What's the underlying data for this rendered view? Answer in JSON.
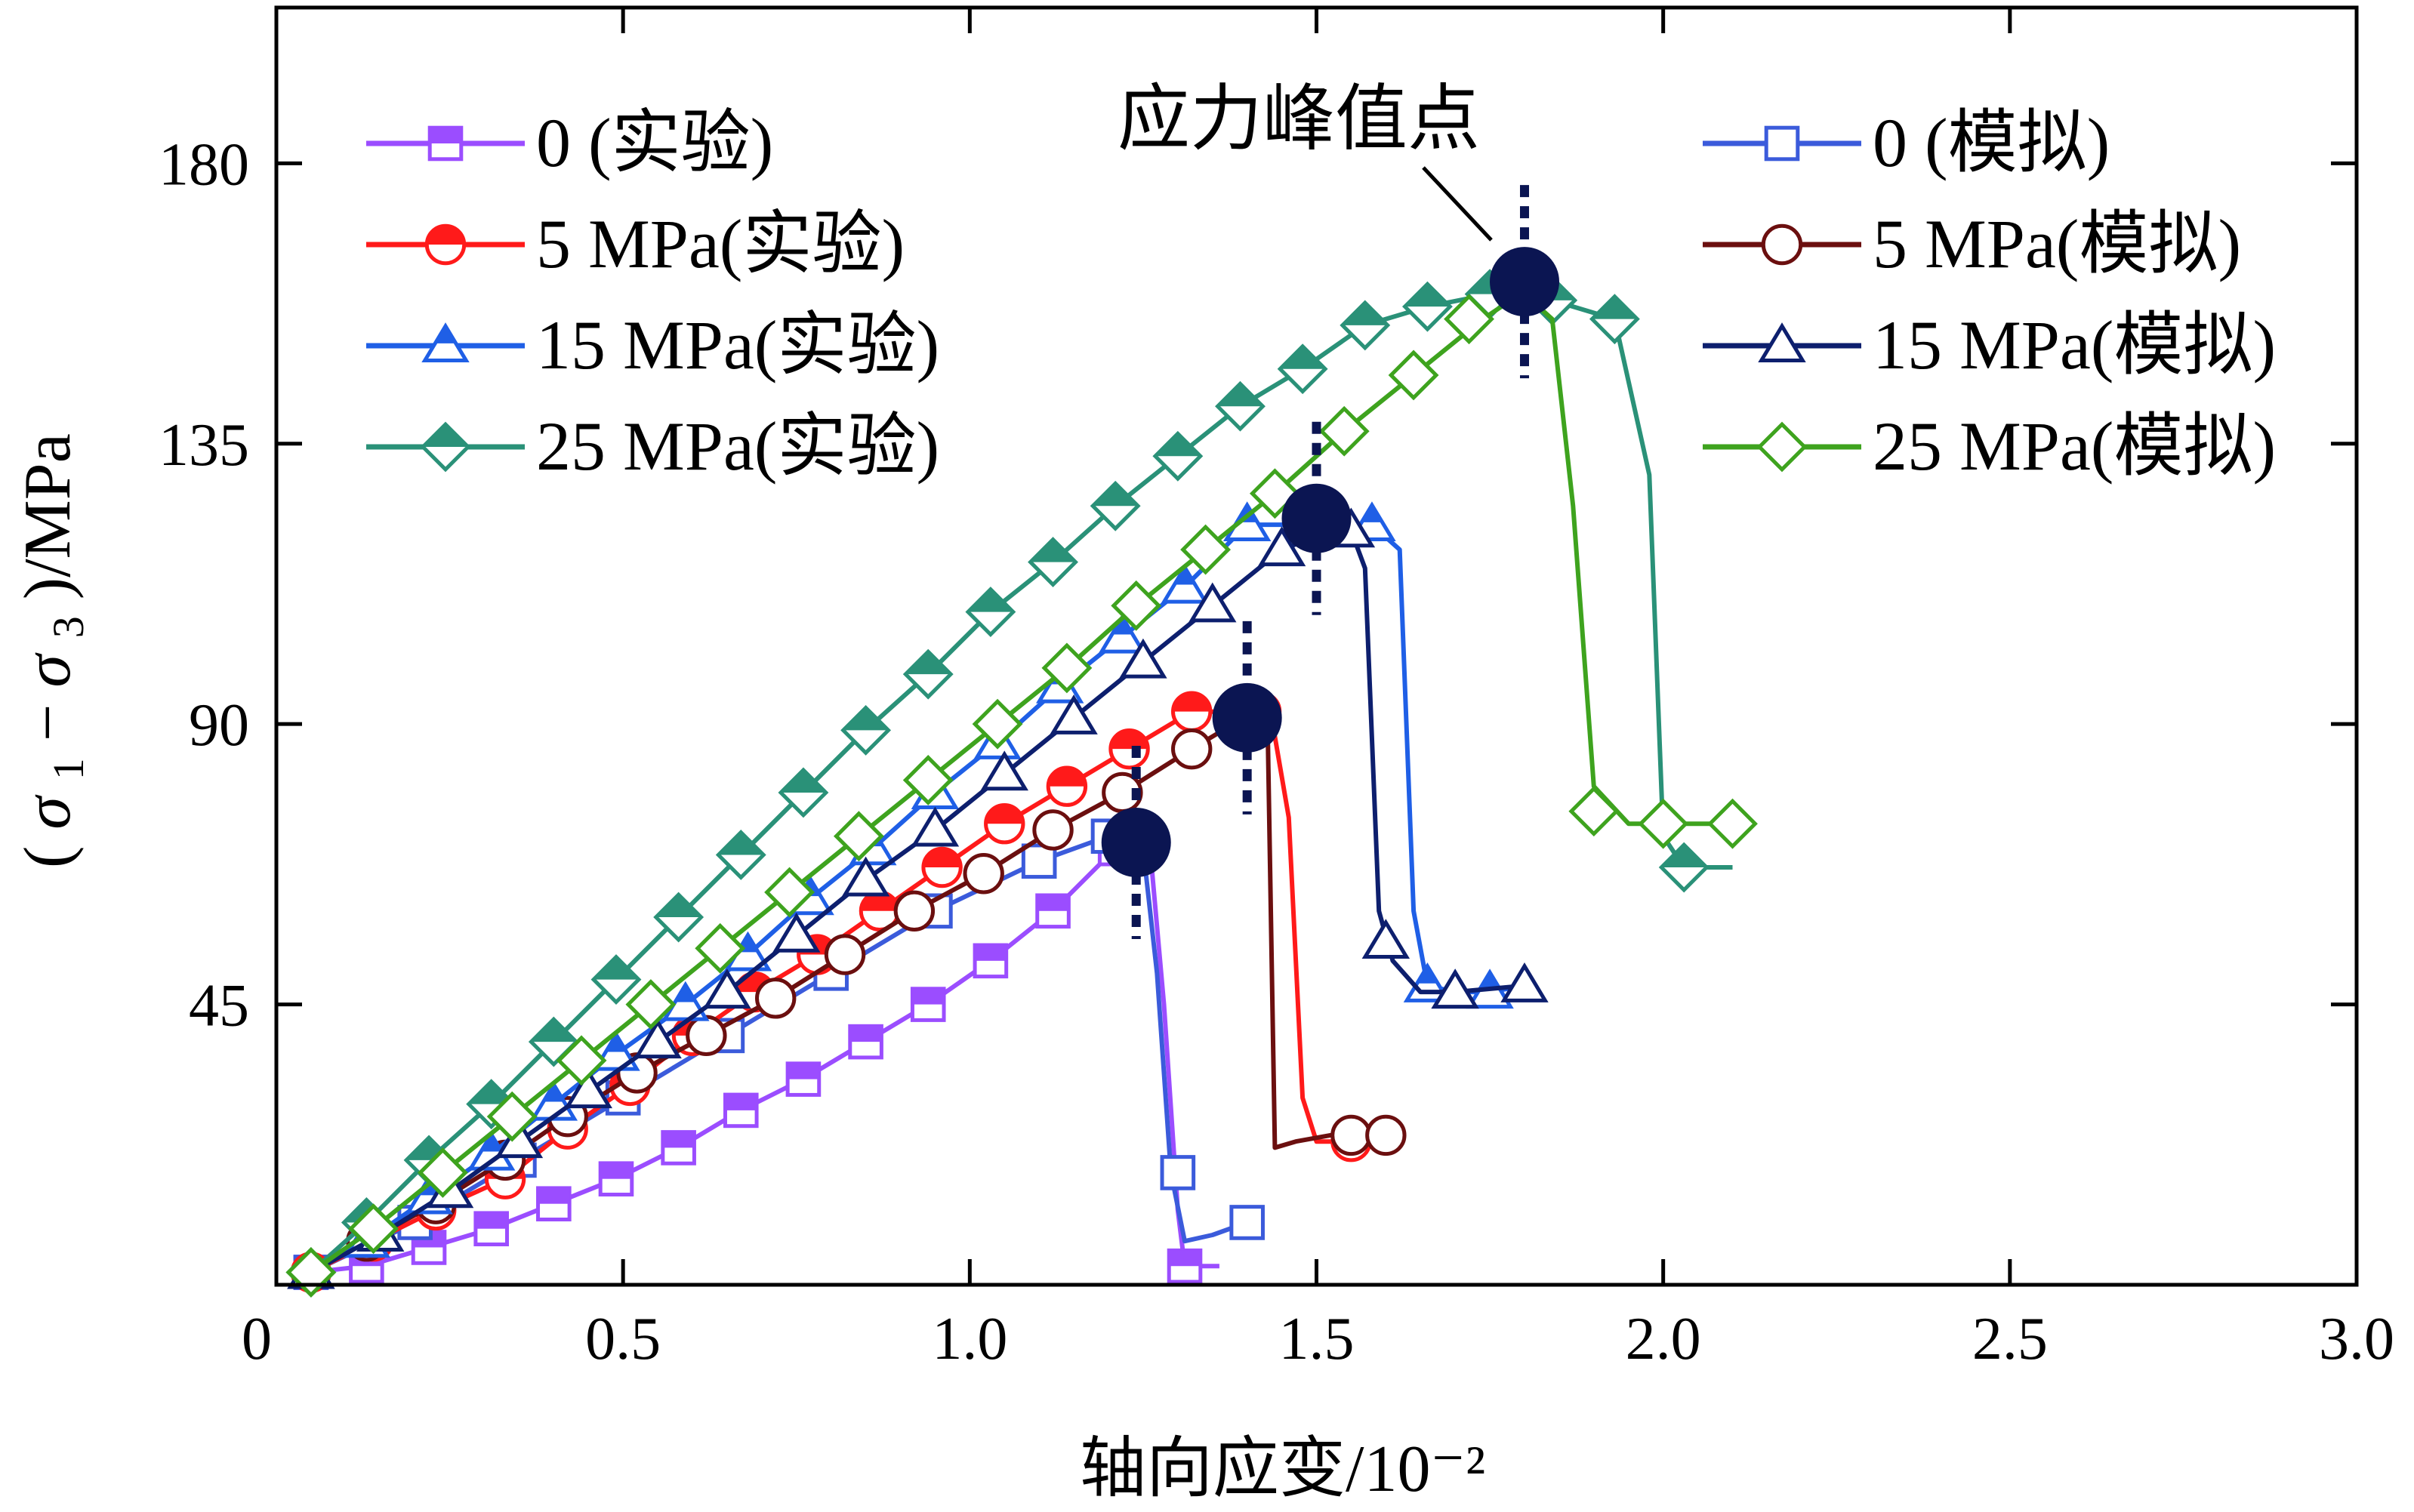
{
  "chart_data": {
    "type": "line",
    "xlabel": "轴向应变/10⁻²",
    "ylabel_parts": {
      "open": "(",
      "sigma1": "σ",
      "sub1": "1",
      "minus": "−",
      "sigma3": "σ",
      "sub3": "3",
      "close": ")/MPa"
    },
    "xlim": [
      0,
      3.0
    ],
    "ylim": [
      0,
      205
    ],
    "xticks": [
      0,
      0.5,
      1.0,
      1.5,
      2.0,
      2.5,
      3.0
    ],
    "xtick_labels": [
      "0",
      "0.5",
      "1.0",
      "1.5",
      "2.0",
      "2.5",
      "3.0"
    ],
    "yticks": [
      45,
      90,
      135,
      180
    ],
    "ytick_labels": [
      "45",
      "90",
      "135",
      "180"
    ],
    "annotation": {
      "text": "应力峰值点",
      "x": 1.8,
      "y": 160
    },
    "legend_left": [
      {
        "label": "0 (实验)",
        "color": "#9b4dff",
        "marker": "square",
        "filled": true
      },
      {
        "label": "5 MPa(实验)",
        "color": "#ff1a1a",
        "marker": "circle",
        "filled": true
      },
      {
        "label": "15 MPa(实验)",
        "color": "#1f5fe6",
        "marker": "triangle",
        "filled": true
      },
      {
        "label": "25 MPa(实验)",
        "color": "#2a9178",
        "marker": "diamond",
        "filled": true
      }
    ],
    "legend_right": [
      {
        "label": "0 (模拟)",
        "color": "#3b5bdb",
        "marker": "square",
        "filled": false
      },
      {
        "label": "5 MPa(模拟)",
        "color": "#6b0f0f",
        "marker": "circle",
        "filled": false
      },
      {
        "label": "15 MPa(模拟)",
        "color": "#0d1f6e",
        "marker": "triangle",
        "filled": false
      },
      {
        "label": "25 MPa(模拟)",
        "color": "#3ea31e",
        "marker": "diamond",
        "filled": false
      }
    ],
    "series": [
      {
        "name": "0 (实验)",
        "color": "#9b4dff",
        "marker": "square",
        "filled": true,
        "x": [
          0.05,
          0.13,
          0.22,
          0.31,
          0.4,
          0.49,
          0.58,
          0.67,
          0.76,
          0.85,
          0.94,
          1.03,
          1.12,
          1.21,
          1.26,
          1.28,
          1.3,
          1.31,
          1.33,
          1.36
        ],
        "y": [
          2,
          3,
          6,
          9,
          13,
          17,
          22,
          28,
          33,
          39,
          45,
          52,
          60,
          70,
          70,
          45,
          12,
          3,
          3,
          3
        ],
        "mx": [
          0.05,
          0.13,
          0.22,
          0.31,
          0.4,
          0.49,
          0.58,
          0.67,
          0.76,
          0.85,
          0.94,
          1.03,
          1.12,
          1.21,
          1.31
        ],
        "my": [
          2,
          3,
          6,
          9,
          13,
          17,
          22,
          28,
          33,
          39,
          45,
          52,
          60,
          70,
          3
        ]
      },
      {
        "name": "0 (模拟)",
        "color": "#3b5bdb",
        "marker": "square",
        "filled": false,
        "x": [
          0.05,
          0.2,
          0.35,
          0.5,
          0.65,
          0.8,
          0.95,
          1.1,
          1.2,
          1.25,
          1.27,
          1.29,
          1.31,
          1.35,
          1.4
        ],
        "y": [
          2,
          10,
          20,
          30,
          40,
          50,
          60,
          68,
          72,
          70,
          50,
          18,
          7,
          8,
          10
        ],
        "mx": [
          0.05,
          0.2,
          0.35,
          0.5,
          0.65,
          0.8,
          0.95,
          1.1,
          1.2,
          1.3,
          1.4
        ],
        "my": [
          2,
          10,
          20,
          30,
          40,
          50,
          60,
          68,
          72,
          18,
          10
        ]
      },
      {
        "name": "5 MPa(实验)",
        "color": "#ff1a1a",
        "marker": "circle",
        "filled": true,
        "x": [
          0.05,
          0.14,
          0.23,
          0.33,
          0.42,
          0.51,
          0.6,
          0.69,
          0.78,
          0.87,
          0.96,
          1.05,
          1.14,
          1.23,
          1.32,
          1.42,
          1.44,
          1.46,
          1.48,
          1.5,
          1.55
        ],
        "y": [
          2,
          7,
          12,
          17,
          25,
          32,
          40,
          47,
          53,
          60,
          67,
          74,
          80,
          86,
          92,
          92,
          88,
          75,
          30,
          23,
          23
        ],
        "mx": [
          0.05,
          0.14,
          0.23,
          0.33,
          0.42,
          0.51,
          0.6,
          0.69,
          0.78,
          0.87,
          0.96,
          1.05,
          1.14,
          1.23,
          1.32,
          1.42,
          1.55
        ],
        "my": [
          2,
          7,
          12,
          17,
          25,
          32,
          40,
          47,
          53,
          60,
          67,
          74,
          80,
          86,
          92,
          92,
          23
        ]
      },
      {
        "name": "5 MPa(模拟)",
        "color": "#6b0f0f",
        "marker": "circle",
        "filled": false,
        "x": [
          0.05,
          0.13,
          0.23,
          0.33,
          0.42,
          0.52,
          0.62,
          0.72,
          0.82,
          0.92,
          1.02,
          1.12,
          1.22,
          1.32,
          1.38,
          1.41,
          1.43,
          1.44,
          1.47,
          1.52,
          1.55,
          1.6
        ],
        "y": [
          2,
          7,
          13,
          20,
          27,
          34,
          40,
          46,
          53,
          60,
          66,
          73,
          79,
          86,
          90,
          90,
          87,
          22,
          23,
          24,
          24,
          24
        ],
        "mx": [
          0.13,
          0.23,
          0.33,
          0.42,
          0.52,
          0.62,
          0.72,
          0.82,
          0.92,
          1.02,
          1.12,
          1.22,
          1.32,
          1.55,
          1.6
        ],
        "my": [
          7,
          13,
          20,
          27,
          34,
          40,
          46,
          53,
          60,
          66,
          73,
          79,
          86,
          24,
          24
        ]
      },
      {
        "name": "15 MPa(实验)",
        "color": "#1f5fe6",
        "marker": "triangle",
        "filled": true,
        "x": [
          0.05,
          0.13,
          0.22,
          0.31,
          0.4,
          0.49,
          0.59,
          0.68,
          0.77,
          0.86,
          0.95,
          1.04,
          1.13,
          1.22,
          1.31,
          1.4,
          1.49,
          1.58,
          1.62,
          1.64,
          1.66,
          1.7,
          1.75,
          1.8
        ],
        "y": [
          2,
          7,
          14,
          21,
          29,
          37,
          45,
          53,
          62,
          70,
          79,
          87,
          96,
          104,
          112,
          122,
          122,
          122,
          118,
          60,
          48,
          47,
          47,
          48
        ],
        "mx": [
          0.05,
          0.13,
          0.22,
          0.31,
          0.4,
          0.49,
          0.59,
          0.68,
          0.77,
          0.86,
          0.95,
          1.04,
          1.13,
          1.22,
          1.31,
          1.4,
          1.49,
          1.58,
          1.66,
          1.7,
          1.75
        ],
        "my": [
          2,
          7,
          14,
          21,
          29,
          37,
          45,
          53,
          62,
          70,
          79,
          87,
          96,
          104,
          112,
          122,
          122,
          122,
          48,
          47,
          47
        ]
      },
      {
        "name": "15 MPa(模拟)",
        "color": "#0d1f6e",
        "marker": "triangle",
        "filled": false,
        "x": [
          0.05,
          0.15,
          0.25,
          0.35,
          0.45,
          0.55,
          0.65,
          0.75,
          0.85,
          0.95,
          1.05,
          1.15,
          1.25,
          1.35,
          1.45,
          1.52,
          1.55,
          1.57,
          1.59,
          1.61,
          1.65,
          1.7,
          1.8
        ],
        "y": [
          2,
          8,
          15,
          23,
          31,
          39,
          47,
          56,
          65,
          73,
          82,
          91,
          100,
          109,
          118,
          121,
          121,
          115,
          60,
          52,
          47,
          47,
          48
        ],
        "mx": [
          0.05,
          0.15,
          0.25,
          0.35,
          0.45,
          0.55,
          0.65,
          0.75,
          0.85,
          0.95,
          1.05,
          1.15,
          1.25,
          1.35,
          1.45,
          1.55,
          1.6,
          1.7,
          1.8
        ],
        "my": [
          2,
          8,
          15,
          23,
          31,
          39,
          47,
          56,
          65,
          73,
          82,
          91,
          100,
          109,
          118,
          121,
          55,
          47,
          48
        ]
      },
      {
        "name": "25 MPa(实验)",
        "color": "#2a9178",
        "marker": "diamond",
        "filled": true,
        "x": [
          0.05,
          0.13,
          0.22,
          0.31,
          0.4,
          0.49,
          0.58,
          0.67,
          0.76,
          0.85,
          0.94,
          1.03,
          1.12,
          1.21,
          1.3,
          1.39,
          1.48,
          1.57,
          1.66,
          1.75,
          1.84,
          1.93,
          1.98,
          2.0,
          2.03,
          2.1
        ],
        "y": [
          2,
          10,
          20,
          29,
          39,
          49,
          59,
          69,
          79,
          89,
          98,
          108,
          116,
          125,
          133,
          141,
          147,
          154,
          157,
          159,
          158,
          155,
          130,
          72,
          67,
          67
        ],
        "mx": [
          0.05,
          0.13,
          0.22,
          0.31,
          0.4,
          0.49,
          0.58,
          0.67,
          0.76,
          0.85,
          0.94,
          1.03,
          1.12,
          1.21,
          1.3,
          1.39,
          1.48,
          1.57,
          1.66,
          1.75,
          1.84,
          1.93,
          2.03
        ],
        "my": [
          2,
          10,
          20,
          29,
          39,
          49,
          59,
          69,
          79,
          89,
          98,
          108,
          116,
          125,
          133,
          141,
          147,
          154,
          157,
          159,
          158,
          155,
          67
        ]
      },
      {
        "name": "25 MPa(模拟)",
        "color": "#3ea31e",
        "marker": "diamond",
        "filled": false,
        "x": [
          0.05,
          0.14,
          0.24,
          0.34,
          0.44,
          0.54,
          0.64,
          0.74,
          0.84,
          0.94,
          1.04,
          1.14,
          1.24,
          1.34,
          1.44,
          1.54,
          1.64,
          1.74,
          1.78,
          1.81,
          1.84,
          1.87,
          1.9,
          1.95,
          2.0,
          2.05,
          2.1
        ],
        "y": [
          2,
          9,
          18,
          27,
          36,
          45,
          54,
          63,
          72,
          81,
          90,
          99,
          109,
          118,
          127,
          137,
          146,
          155,
          158,
          158,
          155,
          125,
          80,
          74,
          74,
          74,
          74
        ],
        "mx": [
          0.05,
          0.14,
          0.24,
          0.34,
          0.44,
          0.54,
          0.64,
          0.74,
          0.84,
          0.94,
          1.04,
          1.14,
          1.24,
          1.34,
          1.44,
          1.54,
          1.64,
          1.72,
          1.9,
          2.0,
          2.1
        ],
        "my": [
          2,
          9,
          18,
          27,
          36,
          45,
          54,
          63,
          72,
          81,
          90,
          99,
          109,
          118,
          127,
          137,
          146,
          155,
          76,
          74,
          74
        ]
      }
    ],
    "peaks": [
      {
        "x": 1.24,
        "y": 71,
        "color": "#0b1552"
      },
      {
        "x": 1.4,
        "y": 91,
        "color": "#0b1552"
      },
      {
        "x": 1.5,
        "y": 123,
        "color": "#0b1552"
      },
      {
        "x": 1.8,
        "y": 161,
        "color": "#0b1552"
      }
    ],
    "grid": false,
    "legend_placement": "top-left and top-right"
  }
}
